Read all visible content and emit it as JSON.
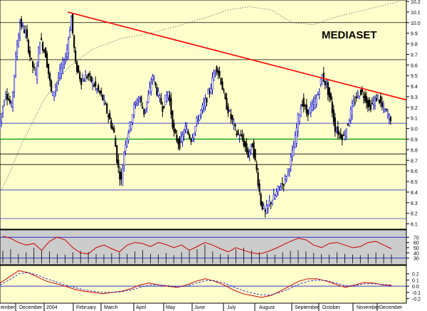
{
  "chart_data": [
    {
      "type": "candlestick",
      "title": "MEDIASET",
      "x_months": [
        "ember",
        "December",
        "2004",
        "February",
        "March",
        "April",
        "May",
        "June",
        "July",
        "August",
        "September",
        "October",
        "November",
        "December"
      ],
      "ylim": [
        8.05,
        10.2
      ],
      "y_ticks": [
        8.1,
        8.2,
        8.3,
        8.4,
        8.5,
        8.6,
        8.7,
        8.8,
        8.9,
        9.0,
        9.1,
        9.2,
        9.3,
        9.4,
        9.5,
        9.6,
        9.7,
        9.8,
        9.9,
        10.0,
        10.1,
        10.2
      ],
      "y_tick_labels": [
        "8.1",
        "8.2",
        "8.3",
        "8.4",
        "8.5",
        "8.6",
        "8.7",
        "8.8",
        "8.9",
        "9.0",
        "9.1",
        "9.2",
        "9.3",
        "9.4",
        "9.5",
        "9.6",
        "9.7",
        "9.8",
        "9.9",
        "10.0",
        "10.1",
        "10.2"
      ],
      "price_path": [
        {
          "d": 0,
          "v": 9.0
        },
        {
          "d": 10,
          "v": 9.35
        },
        {
          "d": 18,
          "v": 9.2
        },
        {
          "d": 25,
          "v": 9.75
        },
        {
          "d": 30,
          "v": 10.0
        },
        {
          "d": 38,
          "v": 9.9
        },
        {
          "d": 45,
          "v": 9.65
        },
        {
          "d": 52,
          "v": 9.5
        },
        {
          "d": 58,
          "v": 9.85
        },
        {
          "d": 66,
          "v": 9.7
        },
        {
          "d": 75,
          "v": 9.3
        },
        {
          "d": 85,
          "v": 9.5
        },
        {
          "d": 95,
          "v": 9.7
        },
        {
          "d": 102,
          "v": 10.05
        },
        {
          "d": 108,
          "v": 9.6
        },
        {
          "d": 116,
          "v": 9.45
        },
        {
          "d": 125,
          "v": 9.5
        },
        {
          "d": 135,
          "v": 9.4
        },
        {
          "d": 145,
          "v": 9.3
        },
        {
          "d": 155,
          "v": 9.1
        },
        {
          "d": 162,
          "v": 8.95
        },
        {
          "d": 167,
          "v": 8.65
        },
        {
          "d": 172,
          "v": 8.5
        },
        {
          "d": 177,
          "v": 8.85
        },
        {
          "d": 183,
          "v": 9.0
        },
        {
          "d": 190,
          "v": 9.2
        },
        {
          "d": 197,
          "v": 9.3
        },
        {
          "d": 204,
          "v": 9.15
        },
        {
          "d": 210,
          "v": 9.3
        },
        {
          "d": 216,
          "v": 9.5
        },
        {
          "d": 222,
          "v": 9.35
        },
        {
          "d": 230,
          "v": 9.2
        },
        {
          "d": 238,
          "v": 9.35
        },
        {
          "d": 246,
          "v": 8.95
        },
        {
          "d": 254,
          "v": 8.85
        },
        {
          "d": 262,
          "v": 9.0
        },
        {
          "d": 270,
          "v": 8.9
        },
        {
          "d": 280,
          "v": 9.1
        },
        {
          "d": 290,
          "v": 9.25
        },
        {
          "d": 298,
          "v": 9.4
        },
        {
          "d": 305,
          "v": 9.6
        },
        {
          "d": 312,
          "v": 9.45
        },
        {
          "d": 318,
          "v": 9.25
        },
        {
          "d": 326,
          "v": 9.1
        },
        {
          "d": 334,
          "v": 8.95
        },
        {
          "d": 342,
          "v": 8.9
        },
        {
          "d": 350,
          "v": 8.75
        },
        {
          "d": 356,
          "v": 8.85
        },
        {
          "d": 362,
          "v": 8.6
        },
        {
          "d": 368,
          "v": 8.3
        },
        {
          "d": 374,
          "v": 8.2
        },
        {
          "d": 380,
          "v": 8.3
        },
        {
          "d": 387,
          "v": 8.35
        },
        {
          "d": 394,
          "v": 8.45
        },
        {
          "d": 401,
          "v": 8.5
        },
        {
          "d": 408,
          "v": 8.65
        },
        {
          "d": 415,
          "v": 8.85
        },
        {
          "d": 420,
          "v": 9.1
        },
        {
          "d": 426,
          "v": 9.25
        },
        {
          "d": 432,
          "v": 9.15
        },
        {
          "d": 440,
          "v": 9.2
        },
        {
          "d": 447,
          "v": 9.3
        },
        {
          "d": 454,
          "v": 9.5
        },
        {
          "d": 460,
          "v": 9.4
        },
        {
          "d": 466,
          "v": 9.25
        },
        {
          "d": 472,
          "v": 9.0
        },
        {
          "d": 478,
          "v": 8.95
        },
        {
          "d": 484,
          "v": 8.92
        },
        {
          "d": 490,
          "v": 9.05
        },
        {
          "d": 496,
          "v": 9.2
        },
        {
          "d": 502,
          "v": 9.3
        },
        {
          "d": 508,
          "v": 9.35
        },
        {
          "d": 514,
          "v": 9.3
        },
        {
          "d": 520,
          "v": 9.2
        },
        {
          "d": 526,
          "v": 9.25
        },
        {
          "d": 532,
          "v": 9.3
        },
        {
          "d": 538,
          "v": 9.2
        },
        {
          "d": 544,
          "v": 9.15
        },
        {
          "d": 548,
          "v": 9.1
        }
      ],
      "trendline": [
        {
          "d": 95,
          "v": 10.1
        },
        {
          "d": 570,
          "v": 9.27
        }
      ],
      "moving_average": [
        {
          "d": 0,
          "v": 8.4
        },
        {
          "d": 15,
          "v": 8.6
        },
        {
          "d": 30,
          "v": 8.85
        },
        {
          "d": 45,
          "v": 9.05
        },
        {
          "d": 60,
          "v": 9.25
        },
        {
          "d": 80,
          "v": 9.45
        },
        {
          "d": 100,
          "v": 9.6
        },
        {
          "d": 130,
          "v": 9.75
        },
        {
          "d": 170,
          "v": 9.85
        },
        {
          "d": 210,
          "v": 9.9
        },
        {
          "d": 250,
          "v": 9.97
        },
        {
          "d": 290,
          "v": 10.05
        },
        {
          "d": 320,
          "v": 10.12
        },
        {
          "d": 350,
          "v": 10.15
        },
        {
          "d": 380,
          "v": 10.12
        },
        {
          "d": 410,
          "v": 10.0
        },
        {
          "d": 440,
          "v": 9.98
        },
        {
          "d": 470,
          "v": 10.05
        },
        {
          "d": 500,
          "v": 10.1
        },
        {
          "d": 530,
          "v": 10.15
        },
        {
          "d": 560,
          "v": 10.2
        }
      ],
      "horizontal_levels": [
        {
          "v": 10.0,
          "color": "#000000"
        },
        {
          "v": 9.65,
          "color": "#000000"
        },
        {
          "v": 9.05,
          "color": "#3333cc"
        },
        {
          "v": 8.9,
          "color": "#009900"
        },
        {
          "v": 8.76,
          "color": "#000000"
        },
        {
          "v": 8.66,
          "color": "#000000"
        },
        {
          "v": 8.42,
          "color": "#3333cc"
        },
        {
          "v": 8.15,
          "color": "#3333cc"
        }
      ]
    },
    {
      "type": "line",
      "description_panel": "oscillator with volume bars",
      "ylim": [
        20,
        80
      ],
      "y_tick_labels": [
        "70",
        "60",
        "50",
        "40",
        "30"
      ],
      "y_ticks": [
        70,
        60,
        50,
        40,
        30
      ],
      "levels": [
        70,
        30
      ],
      "series_values": [
        72,
        68,
        60,
        55,
        58,
        45,
        62,
        70,
        65,
        50,
        40,
        38,
        50,
        55,
        48,
        42,
        55,
        60,
        58,
        52,
        60,
        56,
        50,
        55,
        45,
        52,
        60,
        55,
        48,
        42,
        50,
        45,
        40,
        38,
        42,
        48,
        55,
        62,
        68,
        65,
        55,
        50,
        58,
        60,
        55,
        50,
        52,
        60,
        62,
        55,
        48
      ],
      "volume_values": [
        40,
        45,
        30,
        35,
        50,
        42,
        38,
        30,
        28,
        35,
        40,
        36,
        30,
        28,
        33,
        35,
        30,
        38,
        42,
        30,
        28,
        33,
        26,
        35,
        40,
        45,
        60,
        38,
        30,
        28,
        45,
        50,
        42,
        36,
        30,
        28,
        35,
        40,
        42,
        38,
        33,
        30,
        28,
        35,
        30,
        28,
        26,
        30,
        35,
        30,
        28
      ]
    },
    {
      "type": "line",
      "description_panel": "MACD style oscillator",
      "ylim": [
        -0.25,
        0.3
      ],
      "y_tick_labels": [
        "0.2",
        "0.1",
        "0.0",
        "-0.1",
        "-0.2"
      ],
      "y_ticks": [
        0.2,
        0.1,
        0.0,
        -0.1,
        -0.2
      ],
      "series": [
        {
          "color": "#cc0000",
          "values": [
            0.05,
            0.15,
            0.25,
            0.22,
            0.15,
            0.08,
            0.04,
            0.0,
            -0.05,
            -0.08,
            -0.1,
            -0.12,
            -0.1,
            -0.08,
            -0.04,
            0.02,
            0.05,
            0.02,
            0.0,
            -0.02,
            0.02,
            0.08,
            0.12,
            0.08,
            0.02,
            -0.06,
            -0.12,
            -0.15,
            -0.18,
            -0.15,
            -0.08,
            0.0,
            0.08,
            0.12,
            0.12,
            0.08,
            0.03,
            -0.02,
            0.02,
            0.06,
            0.05,
            0.02,
            0.01
          ]
        },
        {
          "color": "#3333cc",
          "dashed": true,
          "values": [
            0.02,
            0.1,
            0.2,
            0.22,
            0.18,
            0.12,
            0.07,
            0.02,
            -0.02,
            -0.06,
            -0.08,
            -0.1,
            -0.1,
            -0.09,
            -0.06,
            -0.02,
            0.02,
            0.02,
            0.01,
            -0.01,
            0.0,
            0.05,
            0.09,
            0.09,
            0.05,
            -0.01,
            -0.07,
            -0.11,
            -0.14,
            -0.14,
            -0.1,
            -0.04,
            0.03,
            0.08,
            0.1,
            0.09,
            0.05,
            0.01,
            0.01,
            0.04,
            0.04,
            0.03,
            0.02
          ]
        }
      ]
    }
  ]
}
